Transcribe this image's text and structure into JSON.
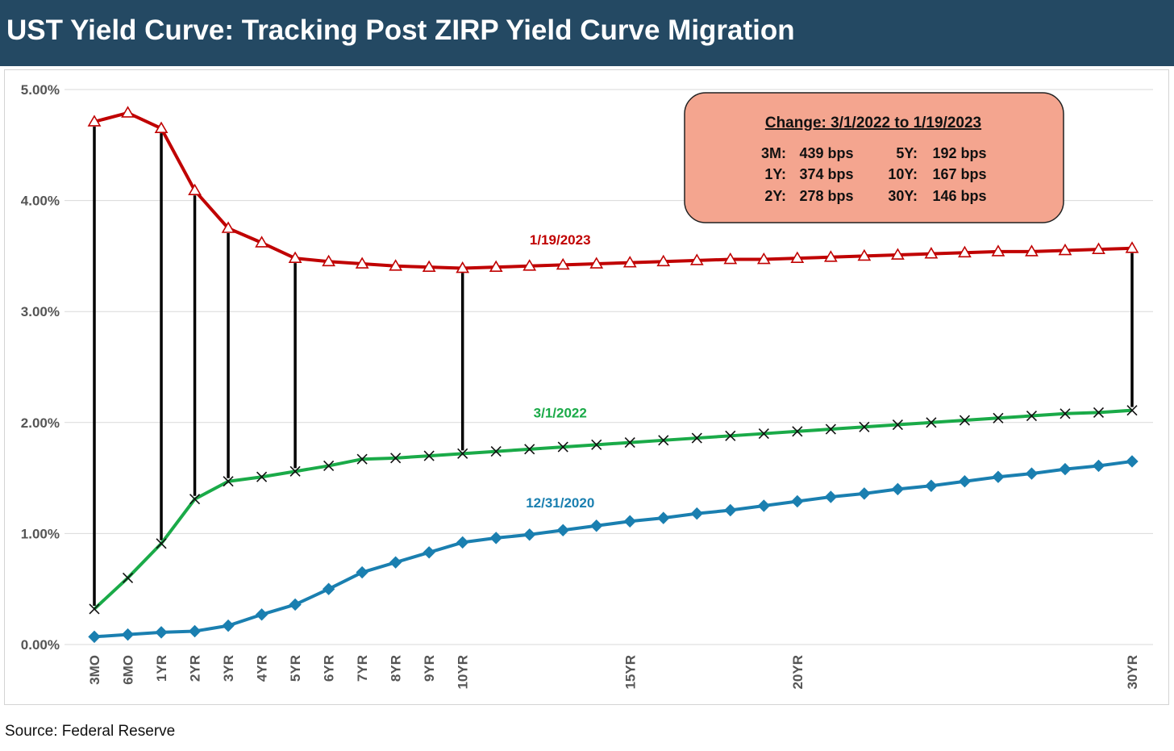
{
  "header": {
    "title": "UST Yield Curve: Tracking Post ZIRP Yield Curve Migration"
  },
  "footer": {
    "source": "Source: Federal Reserve"
  },
  "chart_data": {
    "type": "line",
    "title": "UST Yield Curve: Tracking Post ZIRP Yield Curve Migration",
    "xlabel": "",
    "ylabel": "",
    "ylim": [
      0,
      5
    ],
    "y_ticks": [
      "0.00%",
      "1.00%",
      "2.00%",
      "3.00%",
      "4.00%",
      "5.00%"
    ],
    "grid": "horizontal",
    "x_tick_labels": [
      {
        "index": 0,
        "label": "3MO"
      },
      {
        "index": 1,
        "label": "6MO"
      },
      {
        "index": 2,
        "label": "1YR"
      },
      {
        "index": 3,
        "label": "2YR"
      },
      {
        "index": 4,
        "label": "3YR"
      },
      {
        "index": 5,
        "label": "4YR"
      },
      {
        "index": 6,
        "label": "5YR"
      },
      {
        "index": 7,
        "label": "6YR"
      },
      {
        "index": 8,
        "label": "7YR"
      },
      {
        "index": 9,
        "label": "8YR"
      },
      {
        "index": 10,
        "label": "9YR"
      },
      {
        "index": 11,
        "label": "10YR"
      },
      {
        "index": 16,
        "label": "15YR"
      },
      {
        "index": 21,
        "label": "20YR"
      },
      {
        "index": 31,
        "label": "30YR"
      }
    ],
    "series": [
      {
        "name": "1/19/2023",
        "color": "#c00000",
        "marker": "triangle",
        "values": [
          4.71,
          4.79,
          4.65,
          4.09,
          3.75,
          3.62,
          3.48,
          3.45,
          3.43,
          3.41,
          3.4,
          3.39,
          3.4,
          3.41,
          3.42,
          3.43,
          3.44,
          3.45,
          3.46,
          3.47,
          3.47,
          3.48,
          3.49,
          3.5,
          3.51,
          3.52,
          3.53,
          3.54,
          3.54,
          3.55,
          3.56,
          3.57
        ]
      },
      {
        "name": "3/1/2022",
        "color": "#1aaa48",
        "marker": "x",
        "values": [
          0.32,
          0.6,
          0.91,
          1.31,
          1.47,
          1.51,
          1.56,
          1.61,
          1.67,
          1.68,
          1.7,
          1.72,
          1.74,
          1.76,
          1.78,
          1.8,
          1.82,
          1.84,
          1.86,
          1.88,
          1.9,
          1.92,
          1.94,
          1.96,
          1.98,
          2.0,
          2.02,
          2.04,
          2.06,
          2.08,
          2.09,
          2.11
        ]
      },
      {
        "name": "12/31/2020",
        "color": "#1a7fb0",
        "marker": "diamond",
        "values": [
          0.07,
          0.09,
          0.11,
          0.12,
          0.17,
          0.27,
          0.36,
          0.5,
          0.65,
          0.74,
          0.83,
          0.92,
          0.96,
          0.99,
          1.03,
          1.07,
          1.11,
          1.14,
          1.18,
          1.21,
          1.25,
          1.29,
          1.33,
          1.36,
          1.4,
          1.43,
          1.47,
          1.51,
          1.54,
          1.58,
          1.61,
          1.65
        ]
      }
    ],
    "series_label_positions": [
      {
        "series": "1/19/2023",
        "anchor_index": 15,
        "value": 3.65
      },
      {
        "series": "3/1/2022",
        "anchor_index": 15,
        "value": 2.09
      },
      {
        "series": "12/31/2020",
        "anchor_index": 15,
        "value": 1.28
      }
    ],
    "change_connectors": [
      0,
      2,
      3,
      4,
      6,
      11,
      31
    ],
    "annotation": {
      "title": "Change: 3/1/2022 to 1/19/2023",
      "items": [
        {
          "label": "3M:",
          "value": "439 bps"
        },
        {
          "label": "5Y:",
          "value": "192 bps"
        },
        {
          "label": "1Y:",
          "value": "374 bps"
        },
        {
          "label": "10Y:",
          "value": "167 bps"
        },
        {
          "label": "2Y:",
          "value": "278 bps"
        },
        {
          "label": "30Y:",
          "value": "146 bps"
        }
      ],
      "fill": "#f4a58f",
      "placement": "top-right"
    }
  }
}
